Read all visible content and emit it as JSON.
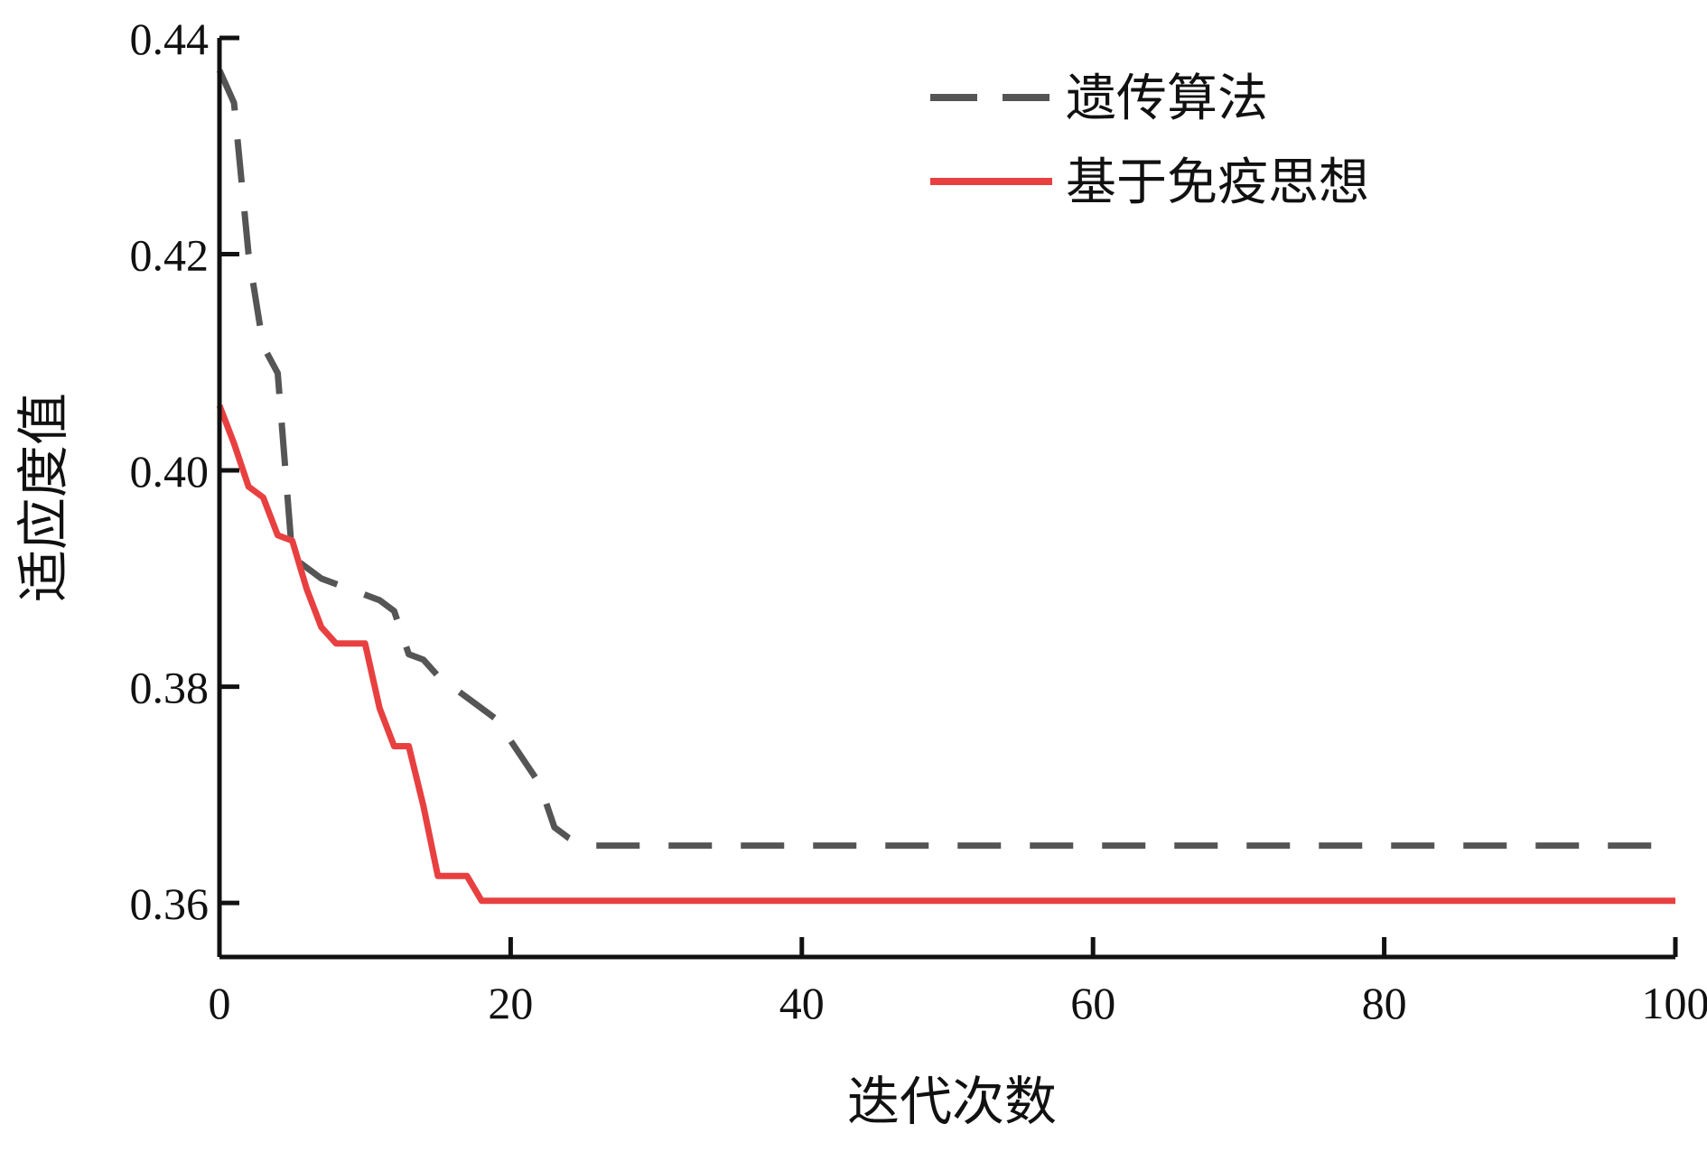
{
  "chart_data": {
    "type": "line",
    "title": "",
    "xlabel": "迭代次数",
    "ylabel": "适应度值",
    "xlim": [
      0,
      100
    ],
    "ylim": [
      0.355,
      0.44
    ],
    "xticks": [
      0,
      20,
      40,
      60,
      80,
      100
    ],
    "xtick_labels": [
      "0",
      "20",
      "40",
      "60",
      "80",
      "100"
    ],
    "yticks": [
      0.36,
      0.38,
      0.4,
      0.42,
      0.44
    ],
    "ytick_labels": [
      "0.36",
      "0.38",
      "0.40",
      "0.42",
      "0.44"
    ],
    "grid": false,
    "legend_position": "top-right",
    "series": [
      {
        "name": "遗传算法",
        "color": "#555555",
        "style": "dashed",
        "x": [
          0,
          1,
          2,
          3,
          4,
          5,
          6,
          7,
          8,
          9,
          10,
          11,
          12,
          13,
          14,
          15,
          16,
          17,
          18,
          19,
          20,
          21,
          22,
          23,
          24,
          25,
          100
        ],
        "y": [
          0.437,
          0.434,
          0.42,
          0.4115,
          0.409,
          0.392,
          0.391,
          0.39,
          0.3895,
          0.389,
          0.3885,
          0.388,
          0.387,
          0.383,
          0.3825,
          0.381,
          0.38,
          0.379,
          0.378,
          0.377,
          0.375,
          0.373,
          0.371,
          0.367,
          0.366,
          0.3653,
          0.3653
        ]
      },
      {
        "name": "基于免疫思想",
        "color": "#e84040",
        "style": "solid",
        "x": [
          0,
          1,
          2,
          3,
          4,
          5,
          6,
          7,
          8,
          9,
          10,
          11,
          12,
          13,
          14,
          15,
          16,
          17,
          18,
          100
        ],
        "y": [
          0.406,
          0.4025,
          0.3985,
          0.3975,
          0.394,
          0.3935,
          0.389,
          0.3855,
          0.384,
          0.384,
          0.384,
          0.378,
          0.3745,
          0.3745,
          0.369,
          0.3625,
          0.3625,
          0.3625,
          0.3602,
          0.3602
        ]
      }
    ]
  }
}
